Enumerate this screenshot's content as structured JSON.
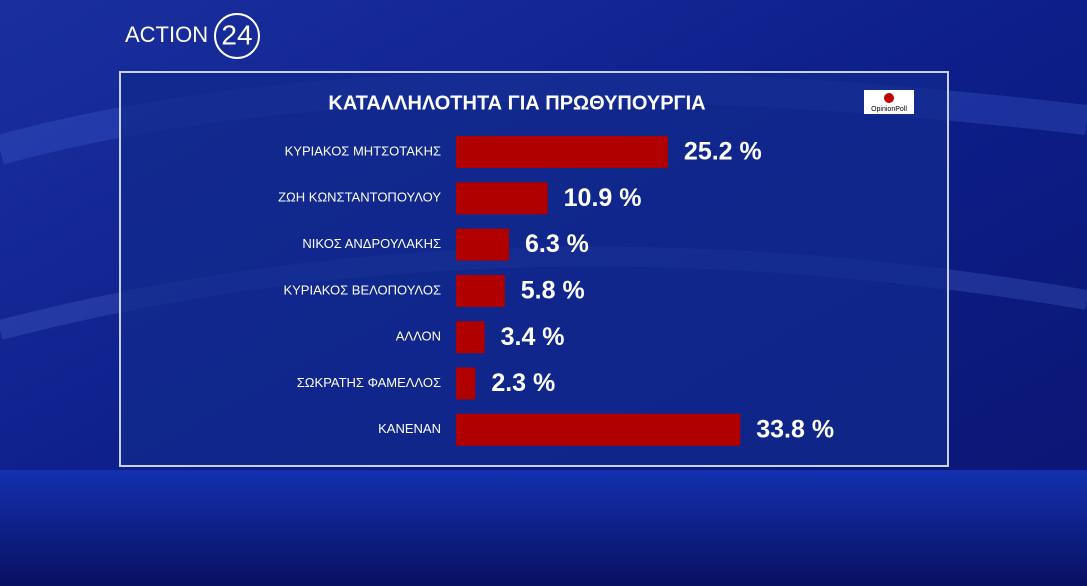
{
  "logo": "ACTION",
  "logo_number": "24",
  "source": "OpinionPoll",
  "chart_data": {
    "type": "bar",
    "orientation": "horizontal",
    "title": "ΚΑΤΑΛΛΗΛΟΤΗΤΑ ΓΙΑ ΠΡΩΘΥΠΟΥΡΓΙΑ",
    "categories": [
      "ΚΥΡΙΑΚΟΣ ΜΗΤΣΟΤΑΚΗΣ",
      "ΖΩΗ ΚΩΝΣΤΑΝΤΟΠΟΥΛΟΥ",
      "ΝΙΚΟΣ ΑΝΔΡΟΥΛΑΚΗΣ",
      "ΚΥΡΙΑΚΟΣ ΒΕΛΟΠΟΥΛΟΣ",
      "ΑΛΛΟΝ",
      "ΣΩΚΡΑΤΗΣ ΦΑΜΕΛΛΟΣ",
      "ΚΑΝΕΝΑΝ"
    ],
    "values": [
      25.2,
      10.9,
      6.3,
      5.8,
      3.4,
      2.3,
      33.8
    ],
    "value_labels": [
      "25.2 %",
      "10.9 %",
      "6.3 %",
      "5.8 %",
      "3.4 %",
      "2.3 %",
      "33.8 %"
    ],
    "color": "#b00000"
  }
}
